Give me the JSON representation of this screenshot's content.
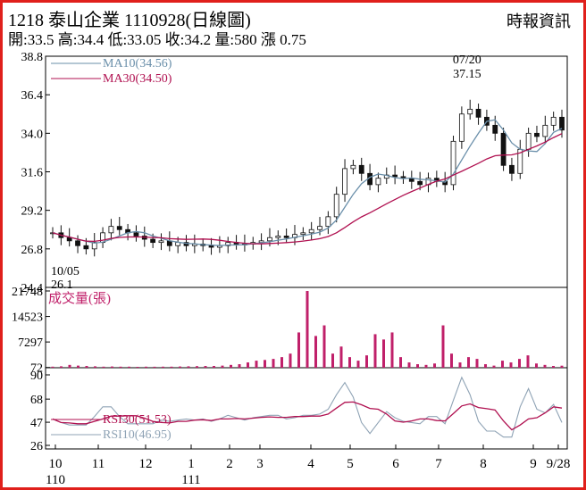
{
  "header": {
    "title": "1218 泰山企業 1110928(日線圖)",
    "quote": "開:33.5 高:34.4 低:33.05 收:34.2 量:580 漲 0.75",
    "source": "時報資訊"
  },
  "colors": {
    "frame": "#e0201c",
    "ma10": "#6a8faa",
    "ma30": "#b01050",
    "candle": "#111111",
    "volume": "#c0206a",
    "rsi30": "#b01050",
    "rsi10": "#8fa3b5"
  },
  "chart_data": [
    {
      "type": "line",
      "panel": "price",
      "chart_kind": "candlestick",
      "y_ticks": [
        38.8,
        36.4,
        34.0,
        31.6,
        29.2,
        26.8,
        24.4
      ],
      "ylim": [
        24.4,
        38.8
      ],
      "series": [
        {
          "name": "MA10(34.56)",
          "color": "#6a8faa"
        },
        {
          "name": "MA30(34.50)",
          "color": "#b01050"
        }
      ],
      "close_approx": [
        27.8,
        27.5,
        27.3,
        27.0,
        26.8,
        27.2,
        27.8,
        28.2,
        28.0,
        27.8,
        27.6,
        27.4,
        27.2,
        27.3,
        27.0,
        27.2,
        27.0,
        27.1,
        27.0,
        26.9,
        27.0,
        27.2,
        27.1,
        27.1,
        27.2,
        27.3,
        27.5,
        27.6,
        27.5,
        27.7,
        27.8,
        28.0,
        28.2,
        28.8,
        30.2,
        31.8,
        32.0,
        31.5,
        30.8,
        31.2,
        31.4,
        31.3,
        31.2,
        31.0,
        30.8,
        31.2,
        31.0,
        30.8,
        33.5,
        35.2,
        35.5,
        35.0,
        34.5,
        34.0,
        32.0,
        31.5,
        33.0,
        34.0,
        33.8,
        34.5,
        35.0,
        34.2
      ],
      "annotations": [
        {
          "label": "07/20",
          "value_label": "37.15",
          "note": "high"
        },
        {
          "label": "10/05",
          "value_label": "26.1",
          "note": "low"
        }
      ]
    },
    {
      "type": "bar",
      "panel": "volume",
      "title": "成交量(張)",
      "y_ticks": [
        21748,
        14523,
        7297,
        72
      ],
      "values_approx": [
        300,
        400,
        800,
        600,
        500,
        400,
        300,
        350,
        300,
        300,
        250,
        300,
        280,
        300,
        300,
        350,
        400,
        450,
        500,
        500,
        600,
        800,
        1000,
        1500,
        2000,
        2200,
        2500,
        3000,
        4000,
        10000,
        21748,
        9000,
        12000,
        4000,
        6000,
        3000,
        2000,
        3500,
        9500,
        8000,
        10000,
        3000,
        1500,
        1000,
        800,
        1200,
        12000,
        4000,
        1500,
        3000,
        2500,
        1000,
        600,
        2000,
        1500,
        2500,
        3500,
        1200,
        800,
        500,
        580
      ]
    },
    {
      "type": "line",
      "panel": "rsi",
      "y_ticks": [
        90,
        68,
        47,
        26
      ],
      "ylim": [
        26,
        90
      ],
      "series": [
        {
          "name": "RSI30(51.53)",
          "color": "#b01050"
        },
        {
          "name": "RSI10(46.95)",
          "color": "#8fa3b5"
        }
      ]
    },
    {
      "type": "table",
      "panel": "x_axis",
      "x_ticks": [
        "10",
        "11",
        "12",
        "1",
        "2",
        "3",
        "4",
        "5",
        "6",
        "7",
        "8",
        "9",
        "9/28"
      ],
      "x_ticks_year": [
        "110",
        "111"
      ]
    }
  ]
}
